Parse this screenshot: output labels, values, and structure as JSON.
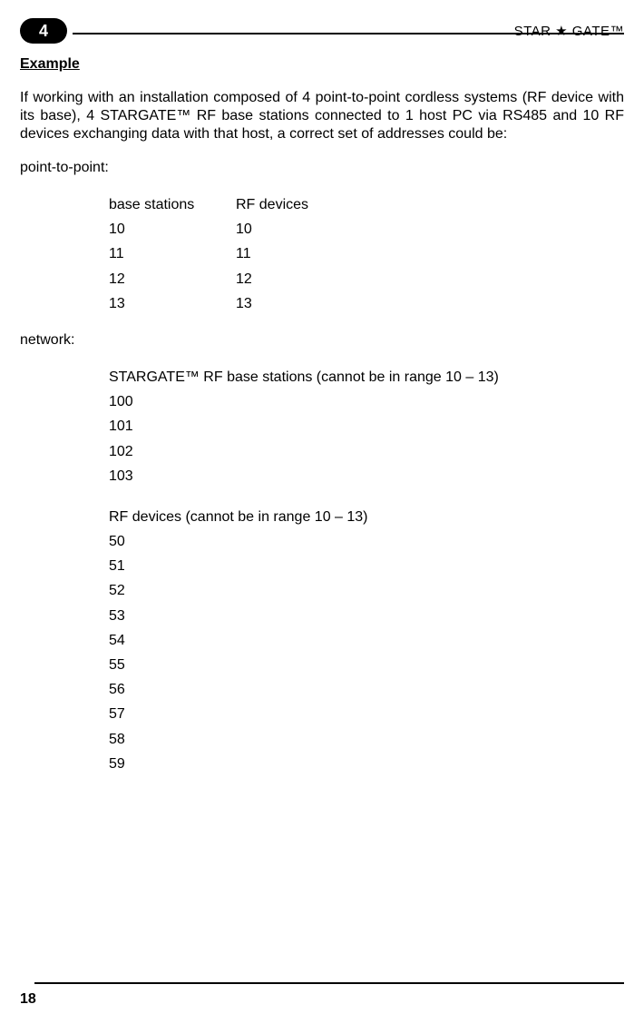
{
  "header": {
    "chapter_number": "4",
    "product_name": "STAR ★ GATE™"
  },
  "section": {
    "title": "Example",
    "intro": "If working with an installation composed of 4 point-to-point cordless systems (RF device with its base), 4 STARGATE™ RF base stations connected to 1 host PC via RS485 and 10 RF devices exchanging data with that host, a correct set of addresses could be:"
  },
  "point_to_point": {
    "label": "point-to-point:",
    "col_a_header": "base stations",
    "col_b_header": "RF devices",
    "rows": [
      {
        "a": "10",
        "b": "10"
      },
      {
        "a": "11",
        "b": "11"
      },
      {
        "a": "12",
        "b": "12"
      },
      {
        "a": "13",
        "b": "13"
      }
    ]
  },
  "network": {
    "label": "network:",
    "base_stations_heading": "STARGATE™ RF base stations (cannot be in range 10 – 13)",
    "base_stations": [
      "100",
      "101",
      "102",
      "103"
    ],
    "rf_devices_heading": "RF devices (cannot be in range 10 – 13)",
    "rf_devices": [
      "50",
      "51",
      "52",
      "53",
      "54",
      "55",
      "56",
      "57",
      "58",
      "59"
    ]
  },
  "footer": {
    "page_number": "18"
  }
}
